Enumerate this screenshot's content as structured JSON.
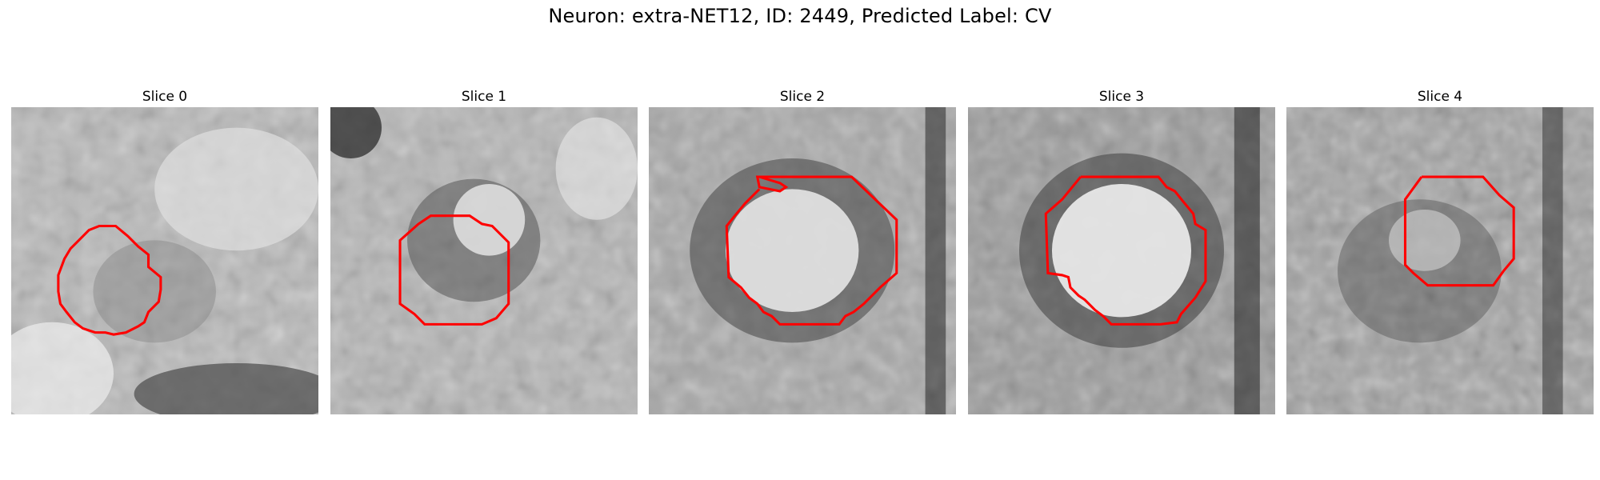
{
  "title": "Neuron: extra-NET12, ID: 2449, Predicted Label: CV",
  "contour_color": "#ff0000",
  "panels": [
    {
      "label": "Slice 0"
    },
    {
      "label": "Slice 1"
    },
    {
      "label": "Slice 2"
    },
    {
      "label": "Slice 3"
    },
    {
      "label": "Slice 4"
    }
  ]
}
